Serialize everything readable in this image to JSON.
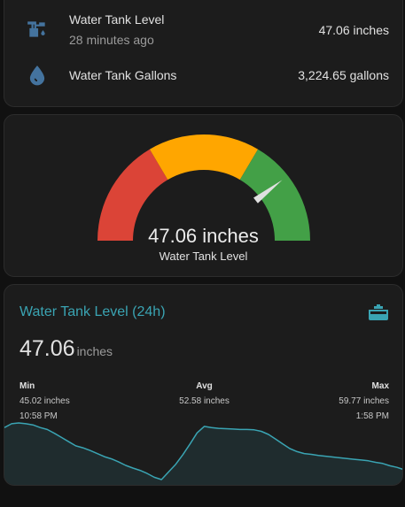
{
  "entities": {
    "rows": [
      {
        "icon": "water-pump-icon",
        "name": "Water Tank Level",
        "secondary": "28 minutes ago",
        "state": "47.06 inches"
      },
      {
        "icon": "water-drop-icon",
        "name": "Water Tank Gallons",
        "state": "3,224.65 gallons"
      }
    ]
  },
  "gauge": {
    "value_text": "47.06 inches",
    "label": "Water Tank Level",
    "fraction": 0.79,
    "segments": [
      {
        "color": "#db4437",
        "from": 0.0,
        "to": 0.33
      },
      {
        "color": "#ffa600",
        "from": 0.33,
        "to": 0.67
      },
      {
        "color": "#43a047",
        "from": 0.67,
        "to": 1.0
      }
    ]
  },
  "graph": {
    "title": "Water Tank Level (24h)",
    "icon": "water-tank-icon",
    "value": "47.06",
    "unit": "inches",
    "stats": {
      "min": {
        "label": "Min",
        "value": "45.02 inches",
        "time": "10:58 PM"
      },
      "avg": {
        "label": "Avg",
        "value": "52.58 inches"
      },
      "max": {
        "label": "Max",
        "value": "59.77 inches",
        "time": "1:58 PM"
      }
    },
    "line_color": "#3aa4b3",
    "series": [
      58.6,
      59.6,
      59.8,
      59.6,
      59.3,
      58.6,
      58.1,
      57.1,
      56.0,
      54.9,
      53.8,
      53.3,
      52.6,
      51.8,
      51.0,
      50.4,
      49.6,
      48.7,
      48.0,
      47.4,
      46.6,
      45.6,
      45.0,
      47.0,
      49.0,
      51.5,
      54.3,
      57.2,
      58.9,
      58.6,
      58.4,
      58.3,
      58.2,
      58.1,
      58.1,
      58.0,
      57.6,
      56.8,
      55.6,
      54.3,
      53.1,
      52.3,
      51.8,
      51.6,
      51.3,
      51.1,
      50.9,
      50.7,
      50.5,
      50.3,
      50.1,
      49.9,
      49.5,
      49.2,
      48.6,
      48.2,
      47.6
    ]
  }
}
